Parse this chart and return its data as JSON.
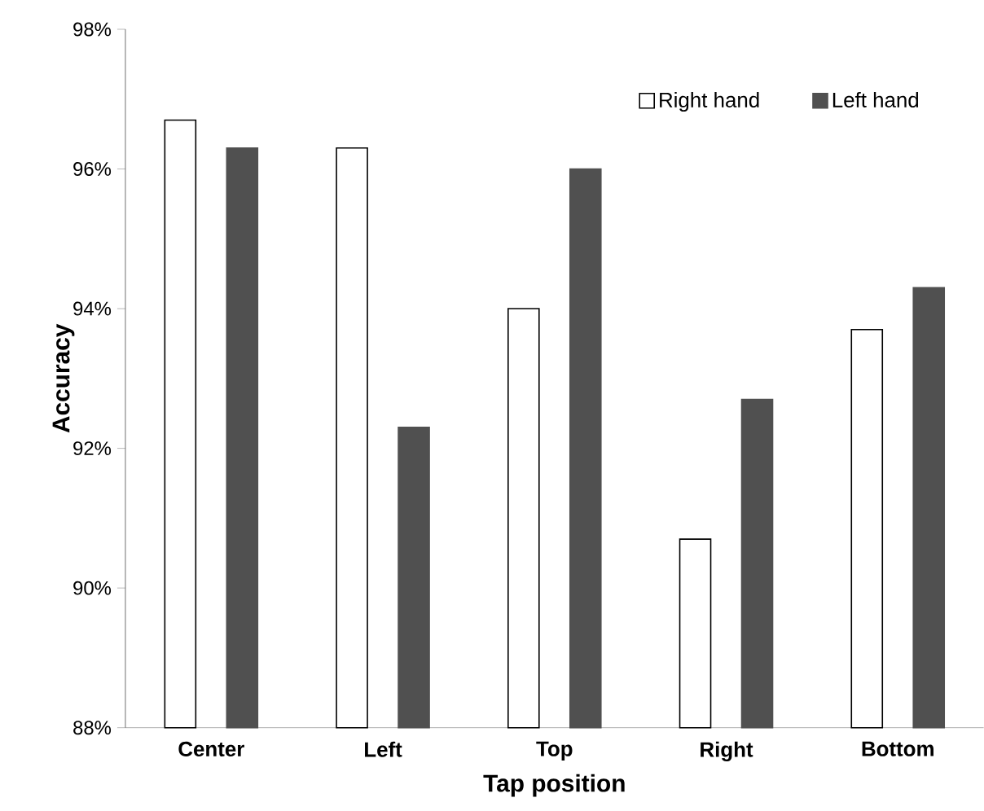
{
  "chart_data": {
    "type": "bar",
    "xlabel": "Tap position",
    "ylabel": "Accuracy",
    "categories": [
      "Center",
      "Left",
      "Top",
      "Right",
      "Bottom"
    ],
    "series": [
      {
        "name": "Right hand",
        "color": "#ffffff",
        "values": [
          96.7,
          96.3,
          94.0,
          90.7,
          93.7
        ]
      },
      {
        "name": "Left hand",
        "color": "#505050",
        "values": [
          96.3,
          92.3,
          96.0,
          92.7,
          94.3
        ]
      }
    ],
    "ylim": [
      88,
      98
    ],
    "yticks": [
      {
        "value": 88,
        "label": "88%"
      },
      {
        "value": 90,
        "label": "90%"
      },
      {
        "value": 92,
        "label": "92%"
      },
      {
        "value": 94,
        "label": "94%"
      },
      {
        "value": 96,
        "label": "96%"
      },
      {
        "value": 98,
        "label": "98%"
      }
    ],
    "grid": false,
    "legend": "top right"
  }
}
